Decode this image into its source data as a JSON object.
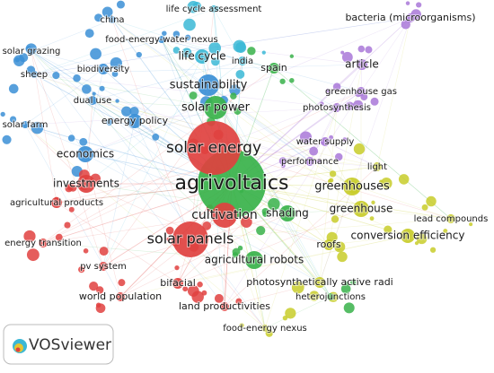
{
  "nodes": [
    {
      "label": "china",
      "color": "#3b8fd6"
    },
    {
      "label": "life cycle assessment",
      "color": "#3bb8d6"
    },
    {
      "label": "food-energy-water nexus",
      "color": "#3b8fd6"
    },
    {
      "label": "bacteria (microorganisms)",
      "color": "#a978d8"
    },
    {
      "label": "solar grazing",
      "color": "#3b8fd6"
    },
    {
      "label": "life cycle",
      "color": "#3bb8d6"
    },
    {
      "label": "india",
      "color": "#3bb8d6"
    },
    {
      "label": "spain",
      "color": "#38b24a"
    },
    {
      "label": "article",
      "color": "#a978d8"
    },
    {
      "label": "biodiversity",
      "color": "#3b8fd6"
    },
    {
      "label": "sheep",
      "color": "#3b8fd6"
    },
    {
      "label": "sustainability",
      "color": "#3b8fd6"
    },
    {
      "label": "greenhouse gas",
      "color": "#a978d8"
    },
    {
      "label": "dual use",
      "color": "#3b8fd6"
    },
    {
      "label": "solar power",
      "color": "#38b24a"
    },
    {
      "label": "photosynthesis",
      "color": "#a978d8"
    },
    {
      "label": "energy policy",
      "color": "#3b8fd6"
    },
    {
      "label": "solar farm",
      "color": "#3b8fd6"
    },
    {
      "label": "solar energy",
      "color": "#e0413f"
    },
    {
      "label": "water supply",
      "color": "#a978d8"
    },
    {
      "label": "economics",
      "color": "#3b8fd6"
    },
    {
      "label": "performance",
      "color": "#a978d8"
    },
    {
      "label": "light",
      "color": "#c8cc2a"
    },
    {
      "label": "agrivoltaics",
      "color": "#38b24a"
    },
    {
      "label": "greenhouses",
      "color": "#c8cc2a"
    },
    {
      "label": "investments",
      "color": "#e0413f"
    },
    {
      "label": "agricultural products",
      "color": "#e0413f"
    },
    {
      "label": "greenhouse",
      "color": "#c8cc2a"
    },
    {
      "label": "cultivation",
      "color": "#e0413f"
    },
    {
      "label": "shading",
      "color": "#38b24a"
    },
    {
      "label": "lead compounds",
      "color": "#c8cc2a"
    },
    {
      "label": "solar panels",
      "color": "#e0413f"
    },
    {
      "label": "conversion efficiency",
      "color": "#c8cc2a"
    },
    {
      "label": "energy transition",
      "color": "#e0413f"
    },
    {
      "label": "roofs",
      "color": "#c8cc2a"
    },
    {
      "label": "agricultural robots",
      "color": "#38b24a"
    },
    {
      "label": "pv system",
      "color": "#e0413f"
    },
    {
      "label": "bifacial",
      "color": "#e0413f"
    },
    {
      "label": "photosynthetically active radi",
      "color": "#c8cc2a"
    },
    {
      "label": "heterojunctions",
      "color": "#38b24a"
    },
    {
      "label": "world population",
      "color": "#e0413f"
    },
    {
      "label": "land productivities",
      "color": "#e0413f"
    },
    {
      "label": "food-energy nexus",
      "color": "#c8cc2a"
    }
  ],
  "logo": {
    "text": "VOSviewer"
  }
}
